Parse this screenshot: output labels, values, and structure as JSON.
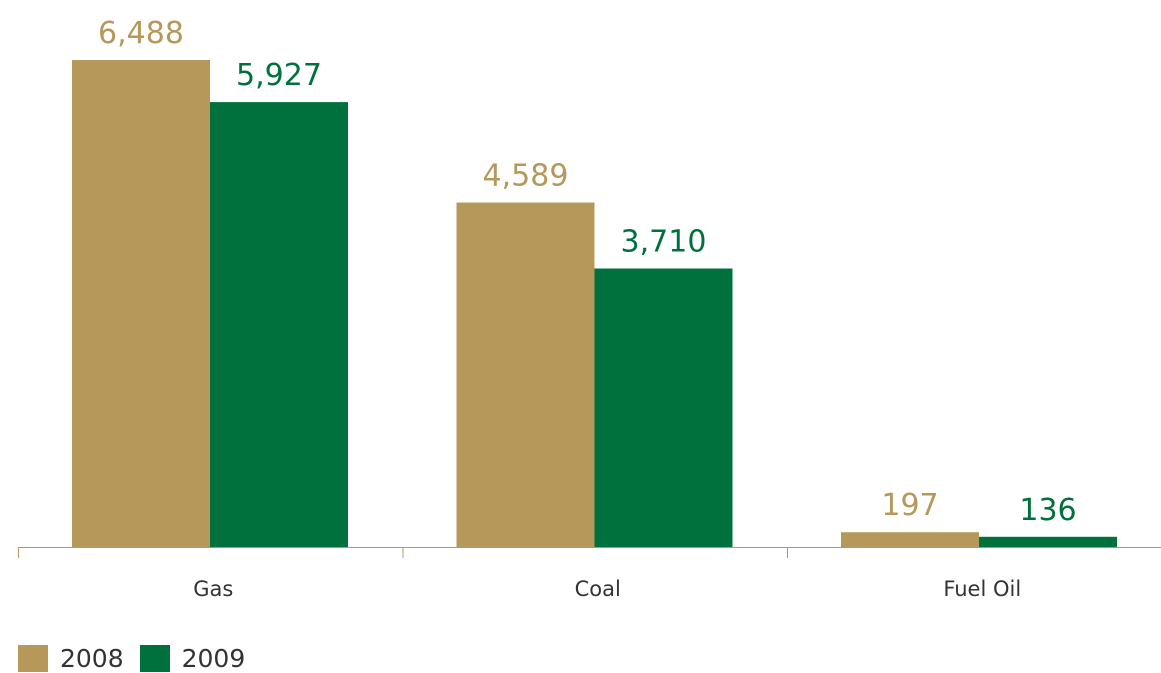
{
  "chart_data": {
    "type": "bar",
    "categories": [
      "Gas",
      "Coal",
      "Fuel Oil"
    ],
    "series": [
      {
        "name": "2008",
        "values": [
          6488,
          4589,
          197
        ],
        "labels": [
          "6,488",
          "4,589",
          "197"
        ],
        "color": "#b5985a"
      },
      {
        "name": "2009",
        "values": [
          5927,
          3710,
          136
        ],
        "labels": [
          "5,927",
          "3,710",
          "136"
        ],
        "color": "#00703c"
      }
    ],
    "ylim": [
      0,
      6488
    ],
    "grid": false,
    "legend_position": "bottom-left",
    "axis_color": "#b5985a"
  }
}
